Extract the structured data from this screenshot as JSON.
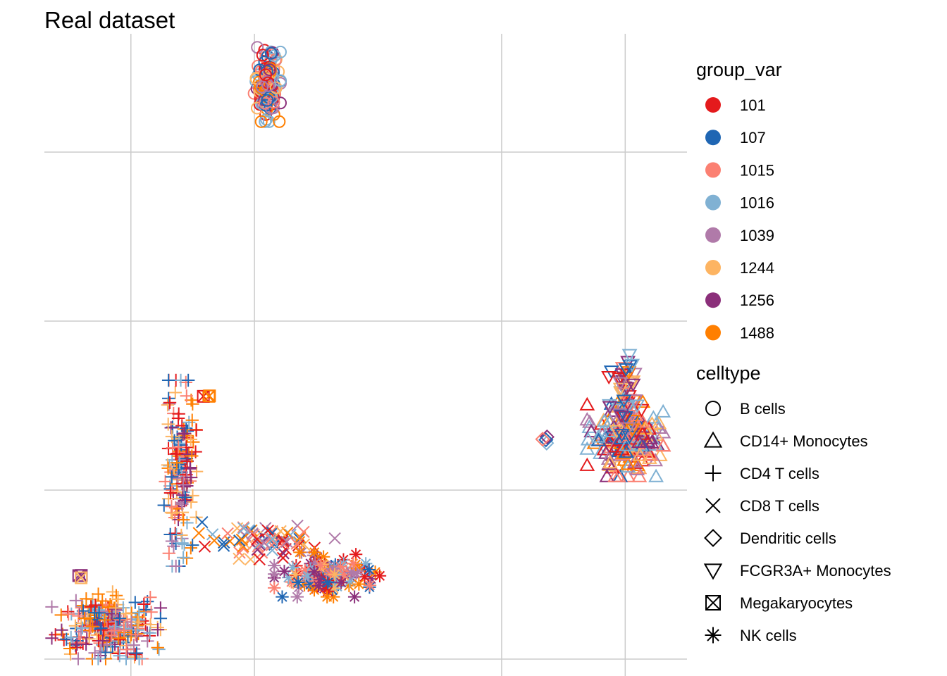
{
  "chart_data": {
    "type": "scatter",
    "title": "Real dataset",
    "xlabel": "",
    "ylabel": "",
    "grid": true,
    "axis_ticks_shown": false,
    "x_gridlines": [
      -10,
      -5,
      5,
      10
    ],
    "y_gridlines": [
      -10,
      -5,
      0,
      5
    ],
    "xlim": [
      -13.5,
      12.5
    ],
    "ylim": [
      -10.5,
      8.5
    ],
    "legend_position": "right",
    "color_legend": {
      "title": "group_var",
      "entries": [
        {
          "label": "101",
          "color": "#E41A1C"
        },
        {
          "label": "107",
          "color": "#1F66B3"
        },
        {
          "label": "1015",
          "color": "#FB8072"
        },
        {
          "label": "1016",
          "color": "#80B1D3"
        },
        {
          "label": "1039",
          "color": "#B07AA9"
        },
        {
          "label": "1244",
          "color": "#FDB462"
        },
        {
          "label": "1256",
          "color": "#8B2F7A"
        },
        {
          "label": "1488",
          "color": "#FF7F00"
        }
      ]
    },
    "shape_legend": {
      "title": "celltype",
      "entries": [
        {
          "label": "B cells",
          "shape": "circle"
        },
        {
          "label": "CD14+ Monocytes",
          "shape": "triangle-up"
        },
        {
          "label": "CD4 T cells",
          "shape": "plus"
        },
        {
          "label": "CD8 T cells",
          "shape": "cross"
        },
        {
          "label": "Dendritic cells",
          "shape": "diamond"
        },
        {
          "label": "FCGR3A+ Monocytes",
          "shape": "triangle-down"
        },
        {
          "label": "Megakaryocytes",
          "shape": "square-cross"
        },
        {
          "label": "NK cells",
          "shape": "asterisk"
        }
      ]
    },
    "clusters": [
      {
        "celltype": "B cells",
        "center": [
          -4.5,
          7.0
        ],
        "spread": [
          0.5,
          1.0
        ],
        "count": 140
      },
      {
        "celltype": "CD14+ Monocytes",
        "center": [
          10.0,
          -3.5
        ],
        "spread": [
          1.4,
          1.0
        ],
        "count": 200
      },
      {
        "celltype": "FCGR3A+ Monocytes",
        "center": [
          10.0,
          -2.2
        ],
        "spread": [
          0.6,
          1.1
        ],
        "count": 60
      },
      {
        "celltype": "CD4 T cells",
        "center": [
          -11.0,
          -9.0
        ],
        "spread": [
          2.0,
          0.9
        ],
        "count": 260
      },
      {
        "celltype": "CD4 T cells",
        "center": [
          -8.0,
          -4.5
        ],
        "spread": [
          0.6,
          2.5
        ],
        "count": 160
      },
      {
        "celltype": "CD8 T cells",
        "center": [
          -4.5,
          -6.5
        ],
        "spread": [
          2.5,
          0.5
        ],
        "count": 70
      },
      {
        "celltype": "NK cells",
        "center": [
          -2.0,
          -7.5
        ],
        "spread": [
          2.0,
          0.6
        ],
        "count": 130
      },
      {
        "celltype": "Megakaryocytes",
        "center": [
          -12.0,
          -7.5
        ],
        "spread": [
          0.1,
          0.1
        ],
        "count": 3
      },
      {
        "celltype": "Megakaryocytes",
        "center": [
          -7.0,
          -2.2
        ],
        "spread": [
          0.2,
          0.1
        ],
        "count": 3
      },
      {
        "celltype": "Dendritic cells",
        "center": [
          6.8,
          -3.5
        ],
        "spread": [
          0.2,
          0.1
        ],
        "count": 4
      }
    ]
  }
}
